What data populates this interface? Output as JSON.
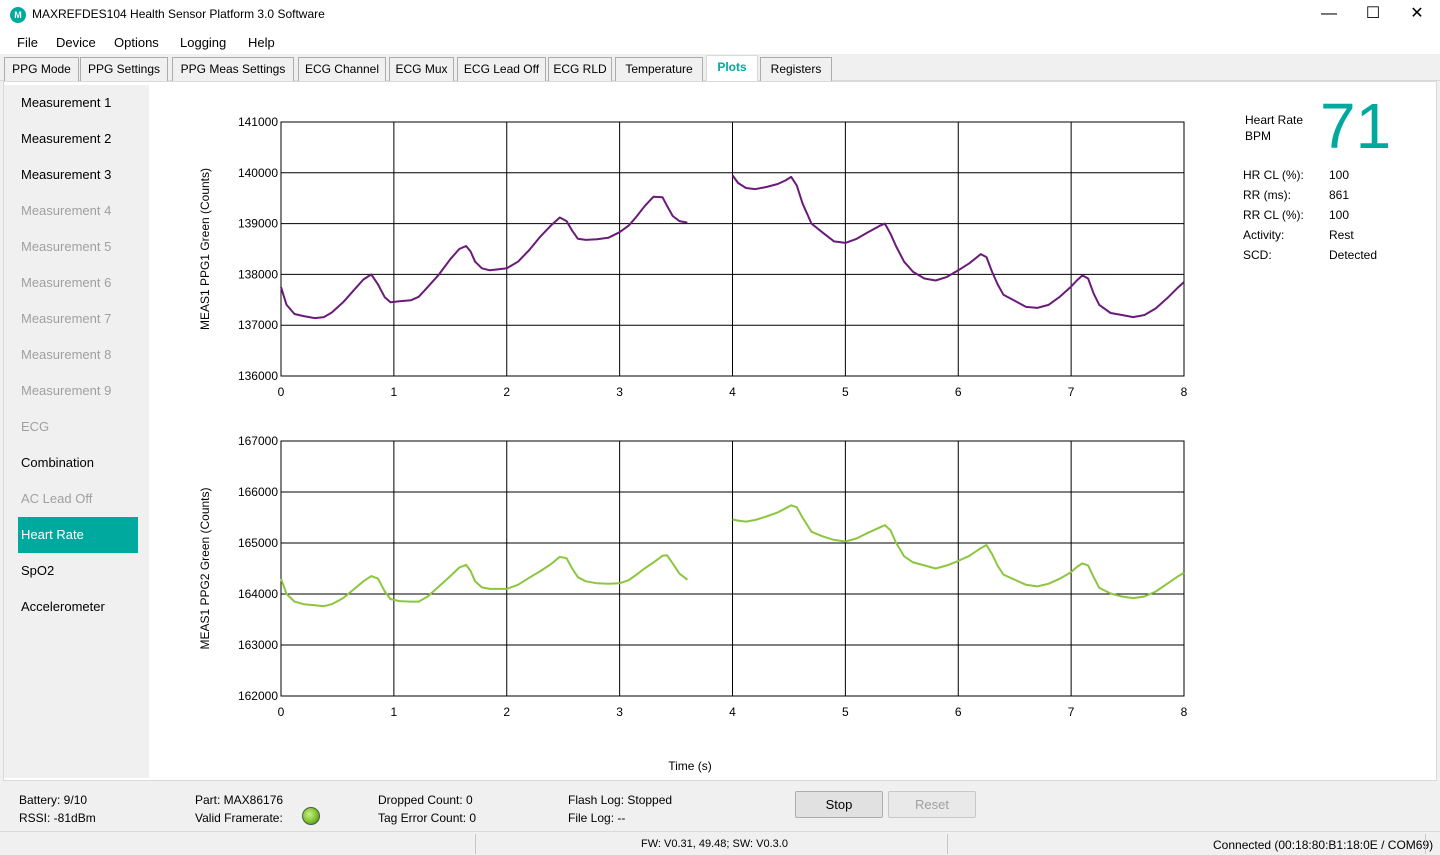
{
  "window": {
    "title": "MAXREFDES104 Health Sensor Platform 3.0 Software",
    "minimize": "—",
    "maximize": "☐",
    "close": "✕",
    "icon": "maxim-logo-icon"
  },
  "menu": [
    "File",
    "Device",
    "Options",
    "Logging",
    "Help"
  ],
  "tabs": [
    {
      "label": "PPG Mode"
    },
    {
      "label": "PPG Settings"
    },
    {
      "label": "PPG Meas Settings"
    },
    {
      "label": "ECG Channel"
    },
    {
      "label": "ECG Mux"
    },
    {
      "label": "ECG Lead Off"
    },
    {
      "label": "ECG RLD"
    },
    {
      "label": "Temperature"
    },
    {
      "label": "Plots"
    },
    {
      "label": "Registers"
    }
  ],
  "active_tab": "Plots",
  "sidebar": {
    "items": [
      {
        "label": "Measurement 1",
        "state": "enabled"
      },
      {
        "label": "Measurement 2",
        "state": "enabled"
      },
      {
        "label": "Measurement 3",
        "state": "enabled"
      },
      {
        "label": "Measurement 4",
        "state": "disabled"
      },
      {
        "label": "Measurement 5",
        "state": "disabled"
      },
      {
        "label": "Measurement 6",
        "state": "disabled"
      },
      {
        "label": "Measurement 7",
        "state": "disabled"
      },
      {
        "label": "Measurement 8",
        "state": "disabled"
      },
      {
        "label": "Measurement 9",
        "state": "disabled"
      },
      {
        "label": "ECG",
        "state": "disabled"
      },
      {
        "label": "Combination",
        "state": "enabled"
      },
      {
        "label": "AC Lead Off",
        "state": "disabled"
      },
      {
        "label": "Heart Rate",
        "state": "selected"
      },
      {
        "label": "SpO2",
        "state": "enabled"
      },
      {
        "label": "Accelerometer",
        "state": "enabled"
      }
    ]
  },
  "heart_rate": {
    "label_line1": "Heart Rate",
    "label_line2": "BPM",
    "value": "71",
    "value_color": "#00a99d",
    "stats": [
      {
        "key": "HR CL (%):",
        "value": "100"
      },
      {
        "key": "RR (ms):",
        "value": "861"
      },
      {
        "key": "RR CL (%):",
        "value": "100"
      },
      {
        "key": "Activity:",
        "value": "Rest"
      },
      {
        "key": "SCD:",
        "value": "Detected"
      }
    ]
  },
  "chart_data": [
    {
      "type": "line",
      "ylabel": "MEAS1 PPG1 Green (Counts)",
      "xlabel": "",
      "xlim": [
        0,
        8
      ],
      "ylim": [
        136000,
        141000
      ],
      "xticks": [
        "0",
        "1",
        "2",
        "3",
        "4",
        "5",
        "6",
        "7",
        "8"
      ],
      "yticks": [
        "136000",
        "137000",
        "138000",
        "139000",
        "140000",
        "141000"
      ],
      "grid": true,
      "color": "#6a1b7a",
      "segments": [
        {
          "x": [
            0,
            0.05,
            0.12,
            0.2,
            0.3,
            0.38,
            0.45,
            0.55,
            0.65,
            0.73,
            0.8,
            0.86,
            0.92,
            0.97,
            1.05,
            1.15,
            1.22,
            1.3,
            1.4,
            1.5,
            1.58,
            1.64,
            1.68,
            1.72,
            1.78,
            1.85,
            1.93,
            2.0,
            2.1,
            2.2,
            2.3,
            2.4,
            2.47,
            2.53,
            2.58,
            2.63,
            2.7,
            2.8,
            2.9,
            3.0,
            3.08,
            3.15,
            3.22,
            3.3,
            3.38,
            3.42,
            3.47,
            3.53,
            3.6
          ],
          "y": [
            137750,
            137400,
            137220,
            137180,
            137140,
            137160,
            137250,
            137450,
            137700,
            137900,
            138000,
            137800,
            137550,
            137450,
            137470,
            137490,
            137560,
            137750,
            138000,
            138300,
            138500,
            138560,
            138450,
            138250,
            138120,
            138080,
            138100,
            138120,
            138250,
            138480,
            138750,
            138980,
            139120,
            139050,
            138860,
            138700,
            138680,
            138690,
            138720,
            138830,
            138960,
            139140,
            139340,
            139530,
            139520,
            139350,
            139150,
            139050,
            139020
          ]
        },
        {
          "x": [
            4.0,
            4.05,
            4.12,
            4.2,
            4.3,
            4.4,
            4.47,
            4.52,
            4.57,
            4.62,
            4.7,
            4.8,
            4.9,
            5.0,
            5.1,
            5.2,
            5.3,
            5.35,
            5.4,
            5.45,
            5.52,
            5.6,
            5.7,
            5.8,
            5.9,
            6.0,
            6.1,
            6.2,
            6.25,
            6.3,
            6.35,
            6.4,
            6.5,
            6.6,
            6.7,
            6.8,
            6.9,
            7.0,
            7.05,
            7.1,
            7.15,
            7.2,
            7.25,
            7.35,
            7.45,
            7.55,
            7.65,
            7.75,
            7.85,
            7.95,
            8.0
          ],
          "y": [
            139950,
            139800,
            139700,
            139680,
            139720,
            139780,
            139850,
            139920,
            139750,
            139400,
            139000,
            138820,
            138650,
            138620,
            138700,
            138830,
            138950,
            139000,
            138800,
            138550,
            138250,
            138050,
            137920,
            137880,
            137950,
            138080,
            138220,
            138400,
            138340,
            138050,
            137800,
            137600,
            137480,
            137360,
            137340,
            137400,
            137560,
            137760,
            137880,
            137980,
            137920,
            137620,
            137400,
            137240,
            137200,
            137160,
            137200,
            137330,
            137530,
            137750,
            137850
          ]
        }
      ]
    },
    {
      "type": "line",
      "ylabel": "MEAS1 PPG2 Green (Counts)",
      "xlabel": "Time (s)",
      "xlim": [
        0,
        8
      ],
      "ylim": [
        162000,
        167000
      ],
      "xticks": [
        "0",
        "1",
        "2",
        "3",
        "4",
        "5",
        "6",
        "7",
        "8"
      ],
      "yticks": [
        "162000",
        "163000",
        "164000",
        "165000",
        "166000",
        "167000"
      ],
      "grid": true,
      "color": "#8cc63f",
      "segments": [
        {
          "x": [
            0,
            0.05,
            0.12,
            0.2,
            0.3,
            0.38,
            0.45,
            0.55,
            0.65,
            0.73,
            0.8,
            0.86,
            0.92,
            0.97,
            1.05,
            1.15,
            1.22,
            1.3,
            1.4,
            1.5,
            1.58,
            1.64,
            1.68,
            1.72,
            1.78,
            1.85,
            1.93,
            2.0,
            2.1,
            2.2,
            2.3,
            2.4,
            2.47,
            2.53,
            2.58,
            2.63,
            2.7,
            2.8,
            2.9,
            3.0,
            3.08,
            3.15,
            3.22,
            3.3,
            3.38,
            3.42,
            3.47,
            3.53,
            3.6
          ],
          "y": [
            164300,
            164000,
            163850,
            163800,
            163780,
            163760,
            163800,
            163920,
            164100,
            164250,
            164350,
            164300,
            164050,
            163900,
            163860,
            163850,
            163850,
            163950,
            164150,
            164350,
            164520,
            164570,
            164450,
            164250,
            164130,
            164100,
            164100,
            164100,
            164180,
            164320,
            164450,
            164600,
            164730,
            164700,
            164500,
            164330,
            164250,
            164210,
            164200,
            164210,
            164270,
            164380,
            164500,
            164620,
            164750,
            164760,
            164600,
            164400,
            164280
          ]
        },
        {
          "x": [
            4.0,
            4.05,
            4.12,
            4.2,
            4.3,
            4.4,
            4.47,
            4.52,
            4.57,
            4.62,
            4.7,
            4.8,
            4.9,
            5.0,
            5.1,
            5.2,
            5.3,
            5.35,
            5.4,
            5.45,
            5.52,
            5.6,
            5.7,
            5.8,
            5.9,
            6.0,
            6.1,
            6.2,
            6.25,
            6.3,
            6.35,
            6.4,
            6.5,
            6.6,
            6.7,
            6.8,
            6.9,
            7.0,
            7.05,
            7.1,
            7.15,
            7.2,
            7.25,
            7.35,
            7.45,
            7.55,
            7.65,
            7.75,
            7.85,
            7.95,
            8.0
          ],
          "y": [
            165460,
            165440,
            165420,
            165450,
            165520,
            165600,
            165680,
            165740,
            165700,
            165500,
            165220,
            165130,
            165060,
            165030,
            165090,
            165200,
            165300,
            165350,
            165250,
            165000,
            164740,
            164620,
            164560,
            164500,
            164560,
            164650,
            164750,
            164900,
            164960,
            164780,
            164550,
            164380,
            164280,
            164180,
            164150,
            164200,
            164300,
            164430,
            164530,
            164600,
            164560,
            164330,
            164120,
            164010,
            163950,
            163920,
            163950,
            164050,
            164200,
            164350,
            164420
          ]
        }
      ]
    }
  ],
  "status": {
    "battery": "Battery: 9/10",
    "rssi": "RSSI: -81dBm",
    "part": "Part: MAX86176",
    "valid_framerate": "Valid Framerate:",
    "dropped_count": "Dropped Count: 0",
    "tag_error_count": "Tag Error Count: 0",
    "flash_log": "Flash Log: Stopped",
    "file_log": "File Log: --",
    "stop_label": "Stop",
    "reset_label": "Reset",
    "firmware": "FW: V0.31, 49.48; SW: V0.3.0",
    "connection": "Connected (00:18:80:B1:18:0E / COM69)"
  }
}
